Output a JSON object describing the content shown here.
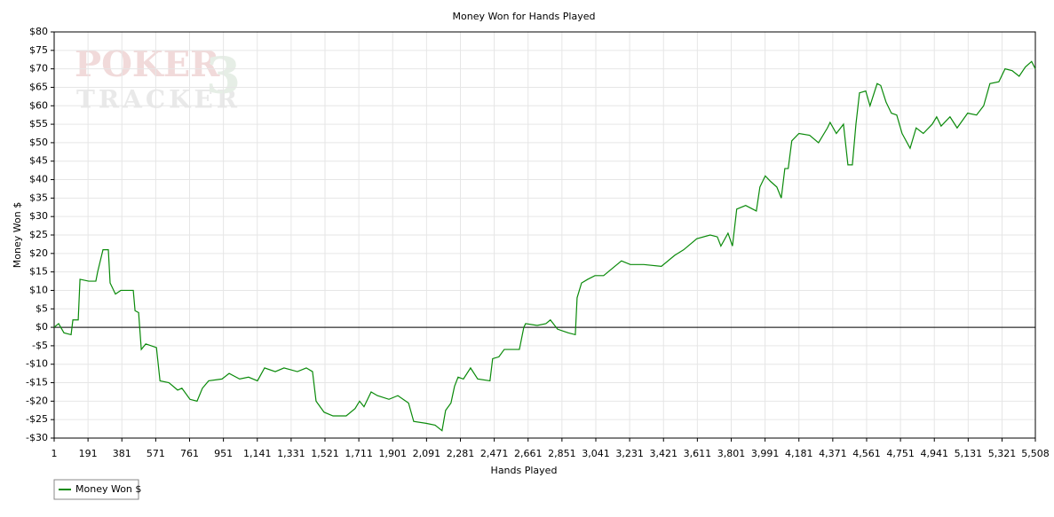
{
  "chart_data": {
    "type": "line",
    "title": "Money Won for Hands Played",
    "watermark": [
      "POKER",
      "TRACKER",
      "3"
    ],
    "xlabel": "Hands Played",
    "ylabel": "Money Won $",
    "xlim": [
      1,
      5508
    ],
    "ylim": [
      -30,
      80
    ],
    "grid": true,
    "legend": "bottom-left",
    "xticks": [
      1,
      191,
      381,
      571,
      761,
      951,
      {
        "value": 1141,
        "label": "1,141"
      },
      {
        "value": 1331,
        "label": "1,331"
      },
      {
        "value": 1521,
        "label": "1,521"
      },
      {
        "value": 1711,
        "label": "1,711"
      },
      {
        "value": 1901,
        "label": "1,901"
      },
      {
        "value": 2091,
        "label": "2,091"
      },
      {
        "value": 2281,
        "label": "2,281"
      },
      {
        "value": 2471,
        "label": "2,471"
      },
      {
        "value": 2661,
        "label": "2,661"
      },
      {
        "value": 2851,
        "label": "2,851"
      },
      {
        "value": 3041,
        "label": "3,041"
      },
      {
        "value": 3231,
        "label": "3,231"
      },
      {
        "value": 3421,
        "label": "3,421"
      },
      {
        "value": 3611,
        "label": "3,611"
      },
      {
        "value": 3801,
        "label": "3,801"
      },
      {
        "value": 3991,
        "label": "3,991"
      },
      {
        "value": 4181,
        "label": "4,181"
      },
      {
        "value": 4371,
        "label": "4,371"
      },
      {
        "value": 4561,
        "label": "4,561"
      },
      {
        "value": 4751,
        "label": "4,751"
      },
      {
        "value": 4941,
        "label": "4,941"
      },
      {
        "value": 5131,
        "label": "5,131"
      },
      {
        "value": 5321,
        "label": "5,321"
      },
      {
        "value": 5508,
        "label": "5,508"
      }
    ],
    "yticks": [
      {
        "value": -30,
        "label": "-$30"
      },
      {
        "value": -25,
        "label": "-$25"
      },
      {
        "value": -20,
        "label": "-$20"
      },
      {
        "value": -15,
        "label": "-$15"
      },
      {
        "value": -10,
        "label": "-$10"
      },
      {
        "value": -5,
        "label": "-$5"
      },
      {
        "value": 0,
        "label": "$0"
      },
      {
        "value": 5,
        "label": "$5"
      },
      {
        "value": 10,
        "label": "$10"
      },
      {
        "value": 15,
        "label": "$15"
      },
      {
        "value": 20,
        "label": "$20"
      },
      {
        "value": 25,
        "label": "$25"
      },
      {
        "value": 30,
        "label": "$30"
      },
      {
        "value": 35,
        "label": "$35"
      },
      {
        "value": 40,
        "label": "$40"
      },
      {
        "value": 45,
        "label": "$45"
      },
      {
        "value": 50,
        "label": "$50"
      },
      {
        "value": 55,
        "label": "$55"
      },
      {
        "value": 60,
        "label": "$60"
      },
      {
        "value": 65,
        "label": "$65"
      },
      {
        "value": 70,
        "label": "$70"
      },
      {
        "value": 75,
        "label": "$75"
      },
      {
        "value": 80,
        "label": "$80"
      }
    ],
    "x": [
      1,
      26,
      56,
      96,
      106,
      136,
      146,
      195,
      235,
      245,
      275,
      305,
      315,
      345,
      375,
      445,
      455,
      475,
      490,
      515,
      575,
      595,
      645,
      694,
      718,
      763,
      803,
      833,
      868,
      943,
      983,
      1042,
      1092,
      1142,
      1182,
      1242,
      1291,
      1366,
      1416,
      1451,
      1471,
      1516,
      1566,
      1640,
      1690,
      1715,
      1740,
      1780,
      1815,
      1880,
      1930,
      1990,
      2019,
      2089,
      2139,
      2178,
      2198,
      2228,
      2248,
      2268,
      2298,
      2338,
      2378,
      2447,
      2462,
      2497,
      2527,
      2612,
      2637,
      2647,
      2712,
      2761,
      2786,
      2826,
      2886,
      2926,
      2936,
      2961,
      2996,
      3036,
      3085,
      3135,
      3185,
      3235,
      3310,
      3409,
      3484,
      3534,
      3608,
      3683,
      3723,
      3743,
      3783,
      3808,
      3832,
      3882,
      3942,
      3962,
      3992,
      4022,
      4057,
      4082,
      4102,
      4121,
      4141,
      4181,
      4241,
      4291,
      4341,
      4356,
      4391,
      4431,
      4456,
      4481,
      4501,
      4521,
      4556,
      4580,
      4620,
      4640,
      4670,
      4700,
      4730,
      4760,
      4805,
      4839,
      4879,
      4929,
      4954,
      4979,
      5029,
      5069,
      5128,
      5178,
      5218,
      5253,
      5303,
      5338,
      5378,
      5417,
      5452,
      5487,
      5508
    ],
    "series": [
      {
        "name": "Money Won $",
        "color": "#0a8a0a",
        "values": [
          0,
          1,
          -1.5,
          -2,
          2,
          2,
          13,
          12.5,
          12.5,
          15,
          21,
          21,
          12,
          9,
          10,
          10,
          4.5,
          4,
          -6,
          -4.5,
          -5.5,
          -14.5,
          -15,
          -17,
          -16.5,
          -19.5,
          -20,
          -16.5,
          -14.5,
          -14,
          -12.5,
          -14,
          -13.5,
          -14.5,
          -11,
          -12,
          -11,
          -12,
          -11,
          -12,
          -20,
          -23,
          -24,
          -24,
          -22,
          -20,
          -21.5,
          -17.5,
          -18.5,
          -19.5,
          -18.5,
          -20.5,
          -25.5,
          -26,
          -26.5,
          -28,
          -22.5,
          -20.5,
          -16,
          -13.5,
          -14,
          -11,
          -14,
          -14.5,
          -8.5,
          -8,
          -6,
          -6,
          0,
          1,
          0.5,
          1,
          2,
          -0.5,
          -1.5,
          -2,
          8,
          12,
          13,
          14,
          14,
          16,
          18,
          17,
          17,
          16.5,
          19.5,
          21,
          24,
          25,
          24.5,
          22,
          25.5,
          22,
          32,
          33,
          31.5,
          38,
          41,
          39.5,
          38,
          35,
          43,
          43,
          50.5,
          52.5,
          52,
          50,
          54,
          55.5,
          52.5,
          55,
          44,
          44,
          55,
          63.5,
          64,
          60,
          66,
          65.5,
          61,
          58,
          57.5,
          52.5,
          48.5,
          54,
          52.5,
          55,
          57,
          54.5,
          57,
          54,
          58,
          57.5,
          60,
          66,
          66.5,
          70,
          69.5,
          68,
          70.5,
          72,
          70
        ]
      }
    ]
  }
}
